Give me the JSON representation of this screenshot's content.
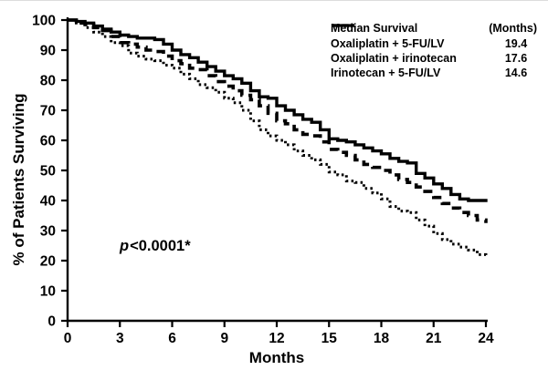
{
  "chart_data": {
    "type": "line",
    "subtype": "kaplan_meier_step_survival",
    "title": "",
    "xlabel": "Months",
    "ylabel": "% of Patients Surviving",
    "xlim": [
      0,
      24
    ],
    "ylim": [
      0,
      100
    ],
    "x_ticks": [
      0,
      3,
      6,
      9,
      12,
      15,
      18,
      21,
      24
    ],
    "y_ticks": [
      0,
      10,
      20,
      30,
      40,
      50,
      60,
      70,
      80,
      90,
      100
    ],
    "grid": false,
    "line_color": "#000000",
    "background": "#ffffff",
    "legend": {
      "position": "top-right",
      "header_left": "Median Survival",
      "header_right": "(Months)"
    },
    "annotation": {
      "full_text": "p<0.0001*",
      "italic_prefix": "p",
      "rest": "<0.0001*"
    },
    "series": [
      {
        "name": "Oxaliplatin + 5-FU/LV",
        "median_months": "19.4",
        "line_style": "solid",
        "points": [
          [
            0,
            100
          ],
          [
            0.5,
            99.5
          ],
          [
            1,
            99
          ],
          [
            1.5,
            98
          ],
          [
            2,
            97
          ],
          [
            2.5,
            96
          ],
          [
            3,
            95
          ],
          [
            3.5,
            94.5
          ],
          [
            4,
            94
          ],
          [
            4.5,
            94
          ],
          [
            5,
            93.5
          ],
          [
            5.5,
            92
          ],
          [
            6,
            90
          ],
          [
            6.5,
            88.5
          ],
          [
            7,
            87.5
          ],
          [
            7.5,
            86
          ],
          [
            8,
            84.5
          ],
          [
            8.5,
            83
          ],
          [
            9,
            81.5
          ],
          [
            9.5,
            80.5
          ],
          [
            10,
            79
          ],
          [
            10.5,
            76.5
          ],
          [
            11,
            74.5
          ],
          [
            11.5,
            74
          ],
          [
            12,
            71.5
          ],
          [
            12.5,
            70
          ],
          [
            13,
            68.5
          ],
          [
            13.5,
            67
          ],
          [
            14,
            66
          ],
          [
            14.5,
            63.5
          ],
          [
            15,
            60.5
          ],
          [
            15.5,
            60
          ],
          [
            16,
            59.5
          ],
          [
            16.5,
            58.5
          ],
          [
            17,
            57.5
          ],
          [
            17.5,
            56.5
          ],
          [
            18,
            55.5
          ],
          [
            18.5,
            54
          ],
          [
            19,
            53
          ],
          [
            19.5,
            52.5
          ],
          [
            20,
            49
          ],
          [
            20.5,
            47.5
          ],
          [
            21,
            45.5
          ],
          [
            21.5,
            44
          ],
          [
            22,
            42
          ],
          [
            22.5,
            40.5
          ],
          [
            23,
            40
          ],
          [
            23.5,
            40
          ],
          [
            24,
            39.5
          ]
        ]
      },
      {
        "name": "Oxaliplatin + irinotecan",
        "median_months": "17.6",
        "line_style": "dashed",
        "points": [
          [
            0,
            100
          ],
          [
            0.5,
            99
          ],
          [
            1,
            98.5
          ],
          [
            1.5,
            97.5
          ],
          [
            2,
            96.5
          ],
          [
            2.5,
            94.5
          ],
          [
            3,
            92.5
          ],
          [
            3.5,
            92
          ],
          [
            4,
            91
          ],
          [
            4.5,
            90
          ],
          [
            5,
            89.5
          ],
          [
            5.5,
            88
          ],
          [
            6,
            86.5
          ],
          [
            6.5,
            85.5
          ],
          [
            7,
            84
          ],
          [
            7.5,
            83.5
          ],
          [
            8,
            81.5
          ],
          [
            8.5,
            79.5
          ],
          [
            9,
            78
          ],
          [
            9.5,
            76.5
          ],
          [
            10,
            75
          ],
          [
            10.5,
            73.5
          ],
          [
            11,
            71.5
          ],
          [
            11.5,
            69
          ],
          [
            12,
            66.5
          ],
          [
            12.5,
            65.5
          ],
          [
            13,
            63.5
          ],
          [
            13.5,
            62
          ],
          [
            14,
            61.5
          ],
          [
            14.5,
            59.5
          ],
          [
            15,
            57
          ],
          [
            15.5,
            56
          ],
          [
            16,
            55
          ],
          [
            16.5,
            53.5
          ],
          [
            17,
            52
          ],
          [
            17.5,
            51
          ],
          [
            18,
            50
          ],
          [
            18.5,
            48.5
          ],
          [
            19,
            47
          ],
          [
            19.5,
            46
          ],
          [
            20,
            44.5
          ],
          [
            20.5,
            43
          ],
          [
            21,
            41
          ],
          [
            21.5,
            39
          ],
          [
            22,
            37.5
          ],
          [
            22.5,
            36
          ],
          [
            23,
            35
          ],
          [
            23.5,
            33.5
          ],
          [
            24,
            32.5
          ]
        ]
      },
      {
        "name": "Irinotecan + 5-FU/LV",
        "median_months": "14.6",
        "line_style": "dotted",
        "points": [
          [
            0,
            100
          ],
          [
            0.5,
            99
          ],
          [
            1,
            97.5
          ],
          [
            1.5,
            96
          ],
          [
            2,
            94.5
          ],
          [
            2.5,
            92.5
          ],
          [
            3,
            91.5
          ],
          [
            3.5,
            89
          ],
          [
            4,
            88
          ],
          [
            4.5,
            87
          ],
          [
            5,
            86.5
          ],
          [
            5.5,
            85
          ],
          [
            6,
            84
          ],
          [
            6.5,
            82
          ],
          [
            7,
            80.5
          ],
          [
            7.5,
            78.5
          ],
          [
            8,
            77.5
          ],
          [
            8.5,
            76
          ],
          [
            9,
            74
          ],
          [
            9.5,
            72.5
          ],
          [
            10,
            70
          ],
          [
            10.5,
            66.5
          ],
          [
            11,
            63.5
          ],
          [
            11.5,
            61.5
          ],
          [
            12,
            60
          ],
          [
            12.5,
            58.5
          ],
          [
            13,
            56.5
          ],
          [
            13.5,
            55
          ],
          [
            14,
            53.5
          ],
          [
            14.5,
            52
          ],
          [
            15,
            49.5
          ],
          [
            15.5,
            48.5
          ],
          [
            16,
            46.5
          ],
          [
            16.5,
            46
          ],
          [
            17,
            44
          ],
          [
            17.5,
            42.5
          ],
          [
            18,
            40.5
          ],
          [
            18.5,
            38
          ],
          [
            19,
            36.5
          ],
          [
            19.5,
            36
          ],
          [
            20,
            33.5
          ],
          [
            20.5,
            31.5
          ],
          [
            21,
            29
          ],
          [
            21.5,
            27
          ],
          [
            22,
            25.5
          ],
          [
            22.5,
            24.5
          ],
          [
            23,
            23.5
          ],
          [
            23.5,
            22
          ],
          [
            24,
            21
          ]
        ]
      }
    ]
  }
}
